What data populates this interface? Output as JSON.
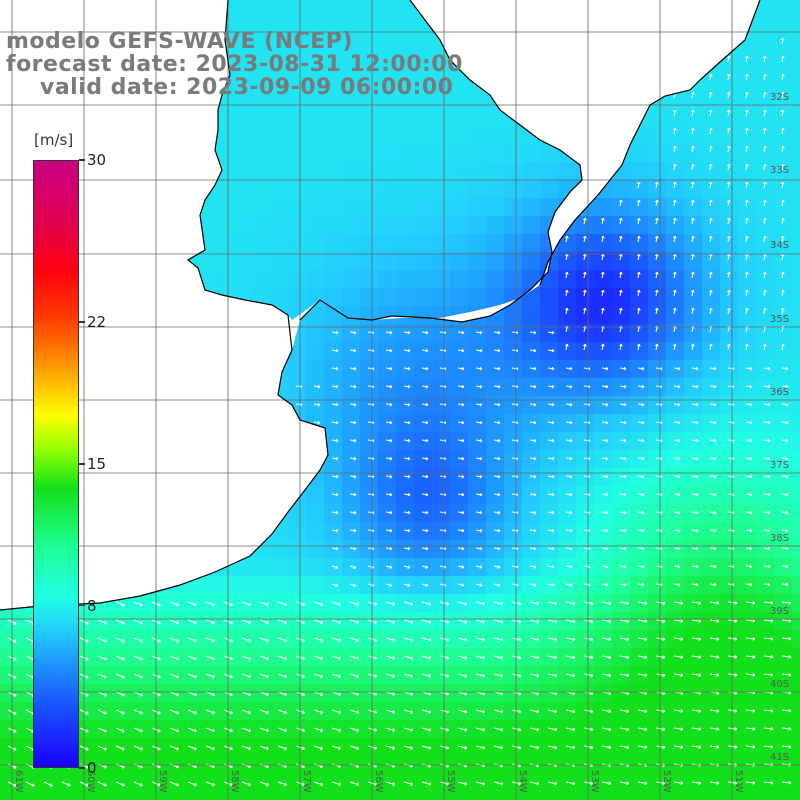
{
  "title": {
    "line1": "modelo GEFS-WAVE (NCEP)",
    "line2": "forecast date: 2023-08-31 12:00:00",
    "line3": "valid date: 2023-09-09 06:00:00"
  },
  "colorbar": {
    "unit": "[m/s]",
    "ticks": [
      "30",
      "22",
      "15",
      "8",
      "0"
    ],
    "tick_values": [
      30,
      22,
      15,
      8,
      0
    ]
  },
  "grid": {
    "lat_labels": [
      "32S",
      "33S",
      "34S",
      "35S",
      "36S",
      "37S",
      "38S",
      "39S",
      "40S",
      "41S"
    ],
    "lon_labels": [
      "61W",
      "60W",
      "59W",
      "58W",
      "57W",
      "56W",
      "55W",
      "54W",
      "53W",
      "52W",
      "51W"
    ]
  },
  "colors": {
    "land": "#ffffff",
    "coast": "#000000",
    "grid": "#666666",
    "vectors": "#ffffff"
  }
}
